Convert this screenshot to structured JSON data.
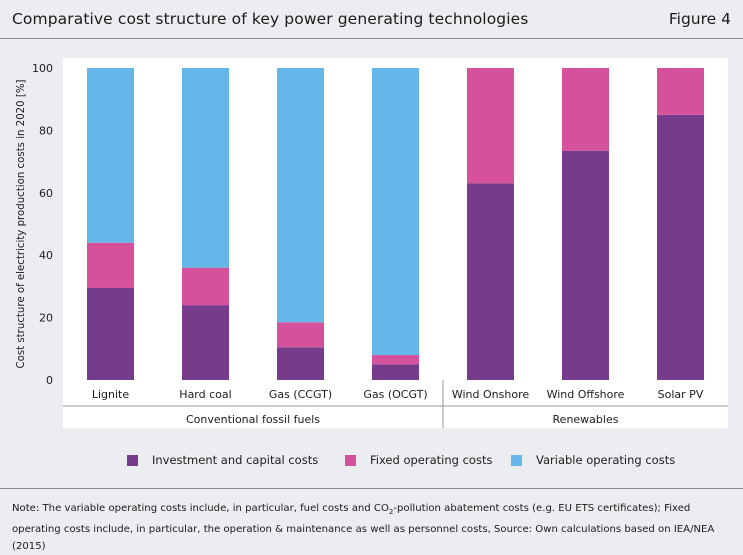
{
  "header": {
    "title": "Comparative cost structure of key power generating technologies",
    "figure_label": "Figure 4"
  },
  "colors": {
    "investment": "#763b8a",
    "fixed": "#d5519c",
    "variable": "#64b7e8",
    "plot_bg": "#ffffff",
    "page_bg": "#ebedf0"
  },
  "chart_data": {
    "type": "bar",
    "stacked": true,
    "categories": [
      "Lignite",
      "Hard coal",
      "Gas (CCGT)",
      "Gas (OCGT)",
      "Wind Onshore",
      "Wind Offshore",
      "Solar PV"
    ],
    "groups": [
      {
        "label": "Conventional fossil fuels",
        "categories": [
          "Lignite",
          "Hard coal",
          "Gas (CCGT)",
          "Gas (OCGT)"
        ]
      },
      {
        "label": "Renewables",
        "categories": [
          "Wind Onshore",
          "Wind Offshore",
          "Solar PV"
        ]
      }
    ],
    "series": [
      {
        "name": "Investment and capital costs",
        "color": "#763b8a",
        "values": [
          29.5,
          24,
          10.5,
          5,
          63,
          73.5,
          85
        ]
      },
      {
        "name": "Fixed operating costs",
        "color": "#d5519c",
        "values": [
          14.5,
          12,
          8,
          3,
          37,
          26.5,
          15
        ]
      },
      {
        "name": "Variable operating costs",
        "color": "#64b7e8",
        "values": [
          56,
          64,
          81.5,
          92,
          0,
          0,
          0
        ]
      }
    ],
    "ylabel": "Cost structure of electricity production costs in 2020 [%]",
    "ylim": [
      0,
      100
    ],
    "yticks": [
      0,
      20,
      40,
      60,
      80,
      100
    ],
    "grid": false,
    "legend_position": "bottom"
  },
  "footer": {
    "note_part1": "Note: The variable operating costs include, in particular, fuel costs and CO",
    "note_sub": "2",
    "note_part2": "-pollution abatement costs (e.g. EU ETS certificates); Fixed operating costs include, in particular, the operation & maintenance as well as personnel costs, Source: Own calculations based on IEA/NEA (2015)"
  }
}
